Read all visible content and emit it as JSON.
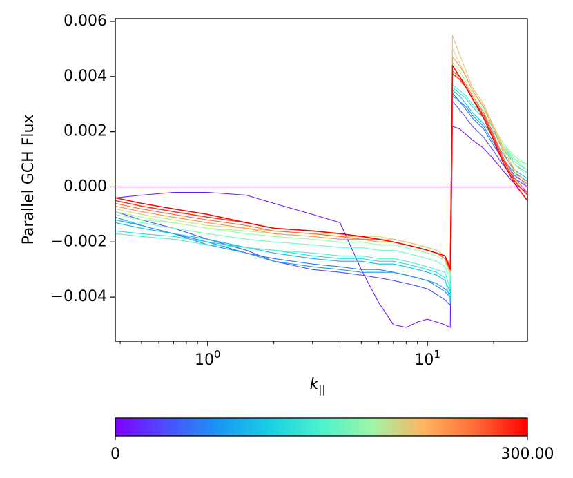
{
  "chart_data": {
    "type": "line",
    "title": "",
    "xlabel": "k",
    "xlabel_subscript": "||",
    "ylabel": "Parallel GCH Flux",
    "xscale": "log",
    "xlim": [
      0.38,
      28.5
    ],
    "ylim": [
      -0.0056,
      0.0061
    ],
    "yticks": [
      {
        "value": -0.004,
        "label": "−0.004"
      },
      {
        "value": -0.002,
        "label": "−0.002"
      },
      {
        "value": 0.0,
        "label": "0.000"
      },
      {
        "value": 0.002,
        "label": "0.002"
      },
      {
        "value": 0.004,
        "label": "0.004"
      },
      {
        "value": 0.006,
        "label": "0.006"
      }
    ],
    "xticks": [
      {
        "value": 1,
        "base": "10",
        "exp": "0"
      },
      {
        "value": 10,
        "base": "10",
        "exp": "1"
      }
    ],
    "colormap": "rainbow",
    "colorbar": {
      "min": 0,
      "max": 300,
      "min_label": "0",
      "max_label": "300.00"
    },
    "spike_k": 12.7,
    "k_grid": [
      0.38,
      0.5,
      0.7,
      1.0,
      1.5,
      2.0,
      3.0,
      4.0,
      5.0,
      6.0,
      7.0,
      8.0,
      9.0,
      10.0,
      11.0,
      12.0,
      12.7,
      13.0,
      14.0,
      15.0,
      16.0,
      18.0,
      20.0,
      22.0,
      25.0,
      28.5
    ],
    "series": [
      {
        "name": "t=0",
        "t": 0,
        "values": [
          0.0,
          0.0,
          0.0,
          0.0,
          0.0,
          0.0,
          0.0,
          0.0,
          0.0,
          0.0,
          0.0,
          0.0,
          0.0,
          0.0,
          0.0,
          0.0,
          0.0,
          0.0,
          0.0,
          0.0,
          0.0,
          0.0,
          0.0,
          0.0,
          0.0,
          0.0
        ]
      },
      {
        "name": "t=8",
        "t": 8,
        "values": [
          -0.0004,
          -0.0003,
          -0.0002,
          -0.0002,
          -0.0003,
          -0.0006,
          -0.001,
          -0.0013,
          -0.003,
          -0.0042,
          -0.005,
          -0.0051,
          -0.0049,
          -0.0048,
          -0.0049,
          -0.005,
          -0.0051,
          0.0022,
          0.0021,
          0.0019,
          0.0017,
          0.0014,
          0.001,
          0.0006,
          0.0001,
          -0.0002
        ]
      },
      {
        "name": "t=30",
        "t": 30,
        "values": [
          -0.0009,
          -0.0012,
          -0.0015,
          -0.0019,
          -0.0023,
          -0.0027,
          -0.003,
          -0.0031,
          -0.0032,
          -0.0033,
          -0.0034,
          -0.0035,
          -0.0036,
          -0.0037,
          -0.0039,
          -0.0041,
          -0.0043,
          0.0031,
          0.0028,
          0.0025,
          0.0022,
          0.0018,
          0.0013,
          0.0008,
          0.0003,
          0.0
        ]
      },
      {
        "name": "t=45",
        "t": 45,
        "values": [
          -0.0011,
          -0.0014,
          -0.0017,
          -0.002,
          -0.0024,
          -0.0026,
          -0.0028,
          -0.0029,
          -0.003,
          -0.003,
          -0.0031,
          -0.0032,
          -0.0033,
          -0.0034,
          -0.0036,
          -0.0038,
          -0.004,
          0.0034,
          0.0031,
          0.0028,
          0.0025,
          0.0021,
          0.0015,
          0.001,
          0.0004,
          0.0001
        ]
      },
      {
        "name": "t=60",
        "t": 60,
        "values": [
          -0.0012,
          -0.0014,
          -0.0017,
          -0.0021,
          -0.0024,
          -0.0027,
          -0.0029,
          -0.003,
          -0.0031,
          -0.0031,
          -0.0031,
          -0.0032,
          -0.0033,
          -0.0034,
          -0.0035,
          -0.0037,
          -0.0039,
          0.0033,
          0.0031,
          0.0029,
          0.0026,
          0.0022,
          0.0016,
          0.001,
          0.0005,
          0.0002
        ]
      },
      {
        "name": "t=80",
        "t": 80,
        "values": [
          -0.0013,
          -0.0015,
          -0.0017,
          -0.0019,
          -0.0022,
          -0.0024,
          -0.0026,
          -0.0027,
          -0.0027,
          -0.0028,
          -0.0028,
          -0.0029,
          -0.003,
          -0.0031,
          -0.0032,
          -0.0034,
          -0.0038,
          0.0035,
          0.0033,
          0.003,
          0.0027,
          0.0023,
          0.0018,
          0.0012,
          0.0006,
          0.0003
        ]
      },
      {
        "name": "t=100",
        "t": 100,
        "values": [
          -0.0016,
          -0.0017,
          -0.0018,
          -0.002,
          -0.0022,
          -0.0023,
          -0.0025,
          -0.0026,
          -0.0026,
          -0.0027,
          -0.0027,
          -0.0028,
          -0.0029,
          -0.003,
          -0.0031,
          -0.0033,
          -0.0042,
          0.0036,
          0.0034,
          0.0032,
          0.0029,
          0.0025,
          0.002,
          0.0014,
          0.0008,
          0.0005
        ]
      },
      {
        "name": "t=120",
        "t": 120,
        "values": [
          -0.0017,
          -0.0018,
          -0.0019,
          -0.0021,
          -0.0022,
          -0.0023,
          -0.0024,
          -0.0025,
          -0.0025,
          -0.0026,
          -0.0026,
          -0.0027,
          -0.0028,
          -0.0029,
          -0.003,
          -0.0031,
          -0.0037,
          0.0037,
          0.0035,
          0.0033,
          0.003,
          0.0026,
          0.0021,
          0.0015,
          0.0009,
          0.0006
        ]
      },
      {
        "name": "t=140",
        "t": 140,
        "values": [
          -0.0012,
          -0.0013,
          -0.0015,
          -0.0017,
          -0.0019,
          -0.002,
          -0.0021,
          -0.0022,
          -0.0022,
          -0.0023,
          -0.0023,
          -0.0024,
          -0.0025,
          -0.0026,
          -0.0027,
          -0.0029,
          -0.0033,
          0.0042,
          0.0039,
          0.0036,
          0.0032,
          0.0027,
          0.0021,
          0.0015,
          0.001,
          0.0008
        ]
      },
      {
        "name": "t=160",
        "t": 160,
        "values": [
          -0.001,
          -0.0012,
          -0.0013,
          -0.0015,
          -0.0017,
          -0.0018,
          -0.0019,
          -0.002,
          -0.002,
          -0.0021,
          -0.0021,
          -0.0022,
          -0.0023,
          -0.0024,
          -0.0025,
          -0.0027,
          -0.0032,
          0.0044,
          0.004,
          0.0036,
          0.0033,
          0.0028,
          0.0022,
          0.0016,
          0.0011,
          0.0008
        ]
      },
      {
        "name": "t=180",
        "t": 180,
        "values": [
          -0.0009,
          -0.0011,
          -0.0013,
          -0.0015,
          -0.0016,
          -0.0017,
          -0.0018,
          -0.0019,
          -0.0019,
          -0.002,
          -0.002,
          -0.0021,
          -0.0022,
          -0.0023,
          -0.0024,
          -0.0026,
          -0.003,
          0.0045,
          0.0042,
          0.0038,
          0.0034,
          0.0029,
          0.0022,
          0.0016,
          0.001,
          0.0006
        ]
      },
      {
        "name": "t=200",
        "t": 200,
        "values": [
          -0.0008,
          -0.001,
          -0.0012,
          -0.0014,
          -0.0015,
          -0.0016,
          -0.0017,
          -0.0017,
          -0.0018,
          -0.0018,
          -0.0019,
          -0.002,
          -0.0021,
          -0.0022,
          -0.0023,
          -0.0025,
          -0.0028,
          0.005,
          0.0045,
          0.004,
          0.0035,
          0.0029,
          0.0022,
          0.0015,
          0.0008,
          0.0004
        ]
      },
      {
        "name": "t=220",
        "t": 220,
        "values": [
          -0.0007,
          -0.0009,
          -0.0011,
          -0.0013,
          -0.0015,
          -0.0016,
          -0.0017,
          -0.0018,
          -0.0018,
          -0.0019,
          -0.0019,
          -0.002,
          -0.0021,
          -0.0022,
          -0.0023,
          -0.0025,
          -0.003,
          0.0055,
          0.0048,
          0.0042,
          0.0036,
          0.003,
          0.0022,
          0.0014,
          0.0006,
          0.0001
        ]
      },
      {
        "name": "t=240",
        "t": 240,
        "values": [
          -0.0007,
          -0.0009,
          -0.0011,
          -0.0013,
          -0.0015,
          -0.0017,
          -0.0018,
          -0.0019,
          -0.0019,
          -0.002,
          -0.002,
          -0.0021,
          -0.0022,
          -0.0023,
          -0.0024,
          -0.0026,
          -0.0031,
          0.0047,
          0.0044,
          0.004,
          0.0035,
          0.0029,
          0.0021,
          0.0013,
          0.0005,
          0.0
        ]
      },
      {
        "name": "t=260",
        "t": 260,
        "values": [
          -0.0006,
          -0.0008,
          -0.001,
          -0.0012,
          -0.0014,
          -0.0016,
          -0.0017,
          -0.0018,
          -0.0019,
          -0.0019,
          -0.002,
          -0.0021,
          -0.0022,
          -0.0023,
          -0.0024,
          -0.0026,
          -0.003,
          0.0042,
          0.004,
          0.0037,
          0.0033,
          0.0027,
          0.0019,
          0.0011,
          0.0003,
          -0.0002
        ]
      },
      {
        "name": "t=280",
        "t": 280,
        "values": [
          -0.0005,
          -0.0007,
          -0.0009,
          -0.0011,
          -0.0013,
          -0.0015,
          -0.0016,
          -0.0017,
          -0.0018,
          -0.0019,
          -0.002,
          -0.0021,
          -0.0022,
          -0.0023,
          -0.0024,
          -0.0025,
          -0.0029,
          0.0041,
          0.0039,
          0.0036,
          0.0032,
          0.0026,
          0.0018,
          0.001,
          0.0002,
          -0.0003
        ]
      },
      {
        "name": "t=300",
        "t": 300,
        "values": [
          -0.0004,
          -0.0006,
          -0.0008,
          -0.001,
          -0.0013,
          -0.0015,
          -0.0016,
          -0.0017,
          -0.0018,
          -0.0019,
          -0.002,
          -0.0021,
          -0.0022,
          -0.0023,
          -0.0024,
          -0.0025,
          -0.003,
          0.0044,
          0.004,
          0.0036,
          0.0032,
          0.0025,
          0.0017,
          0.0009,
          0.0001,
          -0.0005
        ]
      }
    ]
  }
}
